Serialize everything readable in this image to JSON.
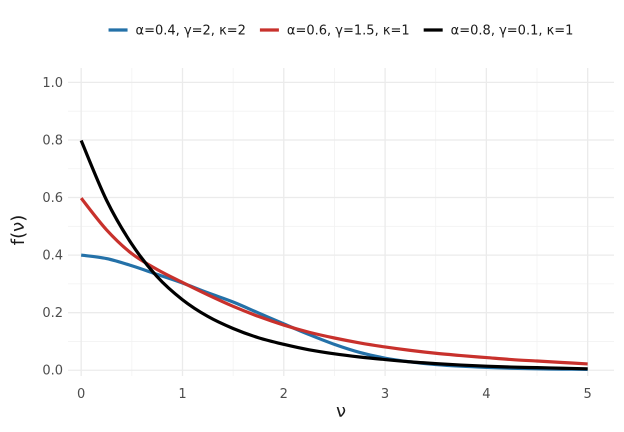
{
  "chart_data": {
    "type": "line",
    "xlabel": "ν",
    "ylabel": "f(ν)",
    "xlim": [
      -0.13,
      5.26
    ],
    "ylim": [
      -0.02,
      1.05
    ],
    "xticks": [
      0,
      1,
      2,
      3,
      4,
      5
    ],
    "xtick_labels": [
      "0",
      "1",
      "2",
      "3",
      "4",
      "5"
    ],
    "yticks": [
      0.0,
      0.2,
      0.4,
      0.6,
      0.8,
      1.0
    ],
    "ytick_labels": [
      "0.0",
      "0.2",
      "0.4",
      "0.6",
      "0.8",
      "1.0"
    ],
    "grid": true,
    "legend_position": "top",
    "x": [
      0,
      0.25,
      0.5,
      0.75,
      1,
      1.25,
      1.5,
      1.75,
      2,
      2.25,
      2.5,
      2.75,
      3,
      3.25,
      3.5,
      3.75,
      4,
      4.25,
      4.5,
      4.75,
      5
    ],
    "series": [
      {
        "name": "α=0.4, γ=2, κ=2",
        "color": "#2471a8",
        "values": [
          0.4,
          0.388,
          0.363,
          0.333,
          0.303,
          0.269,
          0.237,
          0.199,
          0.161,
          0.124,
          0.09,
          0.062,
          0.042,
          0.029,
          0.02,
          0.014,
          0.01,
          0.007,
          0.005,
          0.004,
          0.003
        ]
      },
      {
        "name": "α=0.6, γ=1.5, κ=1",
        "color": "#c8312c",
        "values": [
          0.598,
          0.488,
          0.405,
          0.35,
          0.305,
          0.262,
          0.222,
          0.187,
          0.157,
          0.132,
          0.112,
          0.095,
          0.081,
          0.069,
          0.059,
          0.051,
          0.044,
          0.037,
          0.032,
          0.027,
          0.022
        ]
      },
      {
        "name": "α=0.8, γ=0.1, κ=1",
        "color": "#000000",
        "values": [
          0.798,
          0.591,
          0.438,
          0.325,
          0.245,
          0.187,
          0.145,
          0.113,
          0.09,
          0.071,
          0.057,
          0.046,
          0.037,
          0.029,
          0.023,
          0.018,
          0.014,
          0.011,
          0.009,
          0.007,
          0.005
        ]
      }
    ]
  }
}
